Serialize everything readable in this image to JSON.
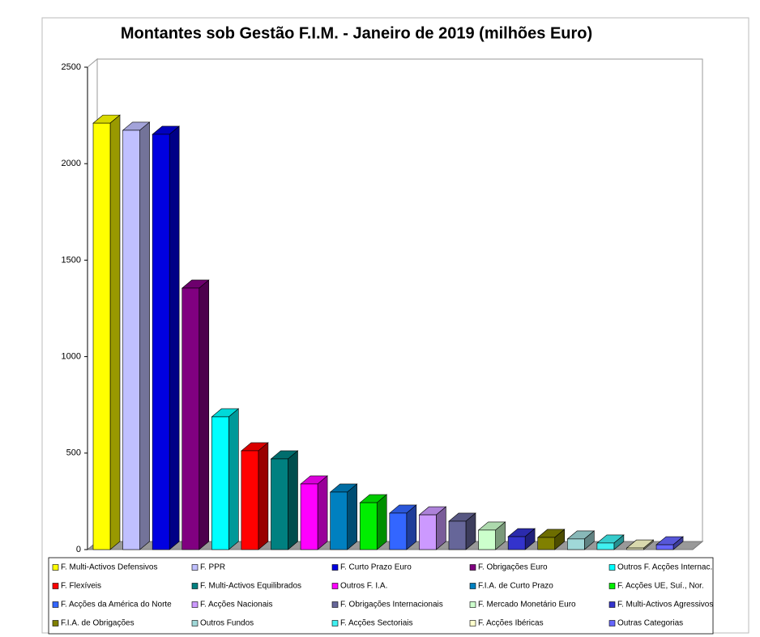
{
  "chart_data": {
    "type": "bar",
    "title": "Montantes sob Gestão F.I.M. - Janeiro de 2019 (milhões Euro)",
    "ylim": [
      0,
      2500
    ],
    "yticks": [
      0,
      500,
      1000,
      1500,
      2000,
      2500
    ],
    "grid": false,
    "legend": "bottom",
    "series": [
      {
        "name": "F. Multi-Activos Defensivos",
        "color": "#ffff00",
        "values": [
          2210
        ]
      },
      {
        "name": "F. PPR",
        "color": "#c0c0ff",
        "values": [
          2173
        ]
      },
      {
        "name": "F. Curto Prazo Euro",
        "color": "#0000e0",
        "values": [
          2152
        ]
      },
      {
        "name": "F. Obrigações Euro",
        "color": "#800080",
        "values": [
          1355
        ]
      },
      {
        "name": "Outros F. Acções Internac.",
        "color": "#00ffff",
        "values": [
          688
        ]
      },
      {
        "name": "F. Flexíveis",
        "color": "#ff0000",
        "values": [
          512
        ]
      },
      {
        "name": "F. Multi-Activos Equilibrados",
        "color": "#008080",
        "values": [
          470
        ]
      },
      {
        "name": "Outros F. I.A.",
        "color": "#ff00ff",
        "values": [
          340
        ]
      },
      {
        "name": "F.I.A. de Curto Prazo",
        "color": "#0080c0",
        "values": [
          298
        ]
      },
      {
        "name": "F. Acções UE, Suí., Nor.",
        "color": "#00ee00",
        "values": [
          243
        ]
      },
      {
        "name": "F. Acções da América do Norte",
        "color": "#3366ff",
        "values": [
          189
        ]
      },
      {
        "name": "F. Acções Nacionais",
        "color": "#cc99ff",
        "values": [
          180
        ]
      },
      {
        "name": "F. Obrigações Internacionais",
        "color": "#666699",
        "values": [
          147
        ]
      },
      {
        "name": "F. Mercado Monetário Euro",
        "color": "#ccffcc",
        "values": [
          101
        ]
      },
      {
        "name": "F. Multi-Activos Agressivos",
        "color": "#3333cc",
        "values": [
          67
        ]
      },
      {
        "name": "F.I.A. de Obrigações",
        "color": "#808000",
        "values": [
          63
        ]
      },
      {
        "name": "Outros Fundos",
        "color": "#a0d8d8",
        "values": [
          55
        ]
      },
      {
        "name": "F. Acções Sectoriais",
        "color": "#40f0f0",
        "values": [
          34
        ]
      },
      {
        "name": "F. Acções Ibéricas",
        "color": "#ffffcc",
        "values": [
          8
        ]
      },
      {
        "name": "Outras Categorias",
        "color": "#6666ff",
        "values": [
          25
        ]
      }
    ]
  }
}
